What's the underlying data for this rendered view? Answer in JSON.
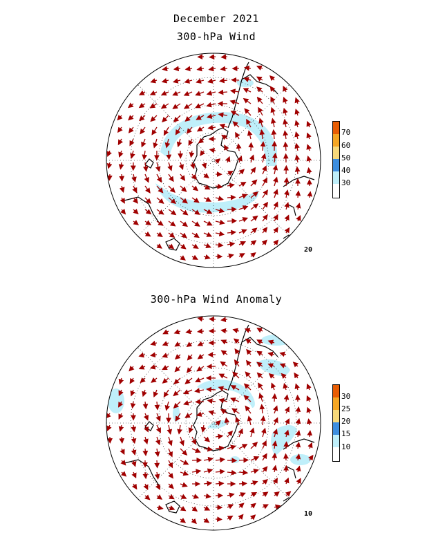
{
  "titles": {
    "month": "December 2021",
    "wind": "300-hPa Wind",
    "anomaly": "300-hPa Wind Anomaly"
  },
  "panels": [
    {
      "id": "wind",
      "reference_vector": "20",
      "colorbar": {
        "ticks": [
          "30",
          "40",
          "50",
          "60",
          "70"
        ],
        "colors": [
          "#ffffff",
          "#bfeffa",
          "#3d8ee0",
          "#f7d97a",
          "#f5a623",
          "#e85d04"
        ]
      },
      "shading_color": "#bfeffa"
    },
    {
      "id": "anomaly",
      "reference_vector": "10",
      "colorbar": {
        "ticks": [
          "10",
          "15",
          "20",
          "25",
          "30"
        ],
        "colors": [
          "#ffffff",
          "#bfeffa",
          "#3d8ee0",
          "#f7d97a",
          "#f5a623",
          "#e85d04"
        ]
      },
      "shading_color": "#bfeffa"
    }
  ],
  "colors": {
    "vector": "#a00000",
    "coast": "#000000",
    "grid": "#000000"
  }
}
